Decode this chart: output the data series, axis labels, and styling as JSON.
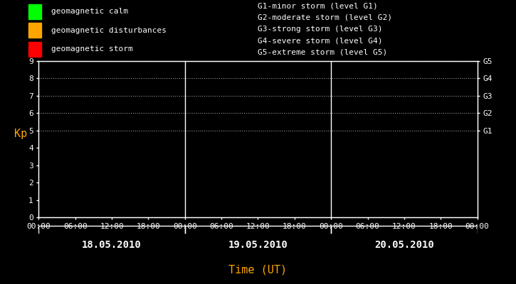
{
  "bg_color": "#000000",
  "plot_bg_color": "#000000",
  "text_color": "#ffffff",
  "axis_label_color": "#ffa500",
  "grid_color": "#ffffff",
  "ylabel": "Kp",
  "xlabel": "Time (UT)",
  "ylim": [
    0,
    9
  ],
  "yticks": [
    0,
    1,
    2,
    3,
    4,
    5,
    6,
    7,
    8,
    9
  ],
  "num_days": 3,
  "dates": [
    "18.05.2010",
    "19.05.2010",
    "20.05.2010"
  ],
  "time_ticks": [
    "00:00",
    "06:00",
    "12:00",
    "18:00"
  ],
  "legend_items": [
    {
      "label": "geomagnetic calm",
      "color": "#00ff00"
    },
    {
      "label": "geomagnetic disturbances",
      "color": "#ffa500"
    },
    {
      "label": "geomagnetic storm",
      "color": "#ff0000"
    }
  ],
  "storm_levels": [
    {
      "label": "G1-minor storm (level G1)"
    },
    {
      "label": "G2-moderate storm (level G2)"
    },
    {
      "label": "G3-strong storm (level G3)"
    },
    {
      "label": "G4-severe storm (level G4)"
    },
    {
      "label": "G5-extreme storm (level G5)"
    }
  ],
  "right_labels": [
    {
      "label": "G1",
      "kp": 5
    },
    {
      "label": "G2",
      "kp": 6
    },
    {
      "label": "G3",
      "kp": 7
    },
    {
      "label": "G4",
      "kp": 8
    },
    {
      "label": "G5",
      "kp": 9
    }
  ],
  "day_dividers": [
    24,
    48
  ],
  "total_hours": 72,
  "font_family": "monospace",
  "font_size": 8,
  "date_font_size": 10,
  "legend_font_size": 8,
  "storm_font_size": 8,
  "ylabel_font_size": 11,
  "xlabel_font_size": 11
}
